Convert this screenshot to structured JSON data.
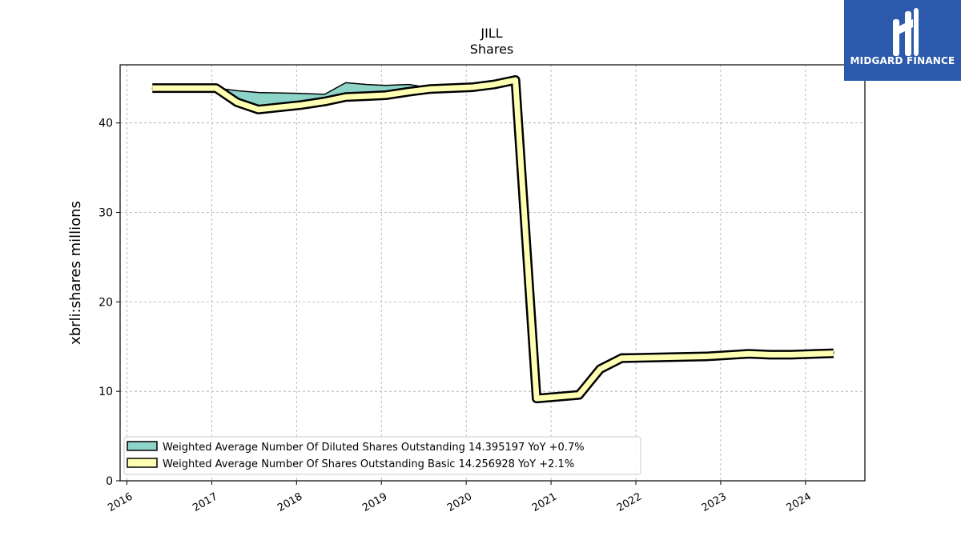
{
  "chart_data": {
    "type": "area",
    "title": "JILL",
    "subtitle": "Shares",
    "ylabel": "xbrli:shares millions",
    "xlabel": "",
    "xlim": [
      2015.92,
      2024.7
    ],
    "ylim": [
      0,
      46.5
    ],
    "y_ticks": [
      0,
      10,
      20,
      30,
      40
    ],
    "x_ticks": [
      2016,
      2017,
      2018,
      2019,
      2020,
      2021,
      2022,
      2023,
      2024
    ],
    "x_tick_labels": [
      "2016",
      "2017",
      "2018",
      "2019",
      "2020",
      "2021",
      "2022",
      "2023",
      "2024"
    ],
    "grid": true,
    "legend_position": "lower-left",
    "x": [
      2016.3,
      2017.05,
      2017.3,
      2017.55,
      2018.05,
      2018.33,
      2018.58,
      2018.83,
      2019.05,
      2019.33,
      2019.58,
      2020.08,
      2020.33,
      2020.58,
      2020.83,
      2021.33,
      2021.58,
      2021.83,
      2022.33,
      2022.83,
      2023.33,
      2023.58,
      2023.83,
      2024.33
    ],
    "series": [
      {
        "name": "Weighted Average Number Of Diluted Shares Outstanding  14.395197 YoY +0.7%",
        "color": "#8dd3c7",
        "values": [
          43.9,
          43.9,
          43.6,
          43.4,
          43.3,
          43.2,
          44.5,
          44.3,
          44.2,
          44.3,
          43.9,
          43.9,
          44.3,
          44.8,
          9.2,
          9.6,
          12.5,
          14.2,
          14.2,
          14.3,
          14.6,
          14.4,
          14.5,
          14.4
        ]
      },
      {
        "name": "Weighted Average Number Of Shares Outstanding Basic  14.256928 YoY +2.1%",
        "color": "#ffffb3",
        "values": [
          43.9,
          43.9,
          42.3,
          41.5,
          42.0,
          42.4,
          42.9,
          43.0,
          43.1,
          43.5,
          43.8,
          44.0,
          44.3,
          44.8,
          9.2,
          9.6,
          12.5,
          13.7,
          13.8,
          13.9,
          14.2,
          14.1,
          14.1,
          14.25
        ]
      }
    ]
  },
  "logo": {
    "text": "MIDGARD FINANCE",
    "background": "#2b5aad"
  }
}
